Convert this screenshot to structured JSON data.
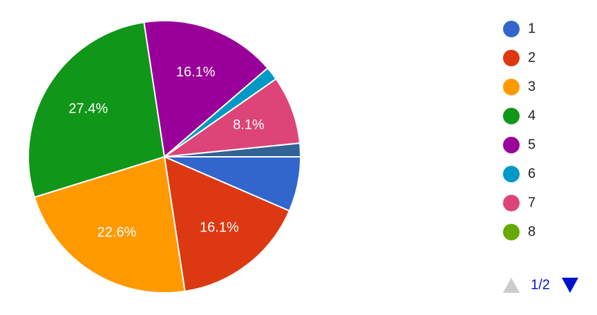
{
  "chart_data": {
    "type": "pie",
    "categories": [
      "1",
      "2",
      "3",
      "4",
      "5",
      "6",
      "7",
      "8",
      null,
      null
    ],
    "values": [
      6.5,
      16.1,
      22.6,
      27.4,
      16.1,
      1.6,
      8.1,
      0,
      0,
      1.6
    ],
    "value_labels": [
      null,
      "16.1%",
      "22.6%",
      "27.4%",
      "16.1%",
      null,
      "8.1%",
      null,
      null,
      null
    ],
    "colors": [
      "#3366cc",
      "#dc3912",
      "#ff9900",
      "#109618",
      "#990099",
      "#0099c6",
      "#dd4477",
      "#66aa00",
      "#b82e2e",
      "#316395"
    ],
    "legend_page": "1/2"
  }
}
